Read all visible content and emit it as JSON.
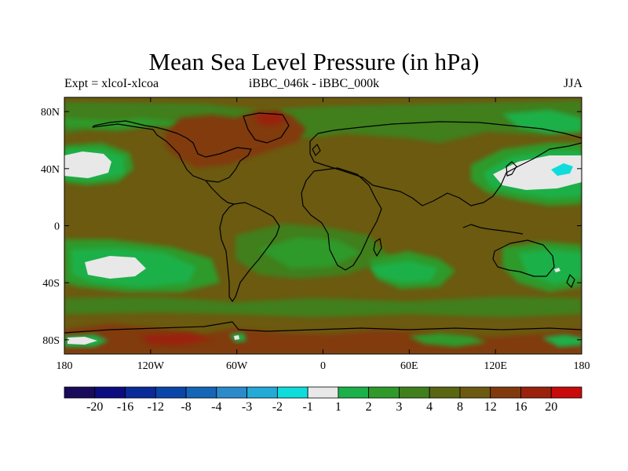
{
  "title": "Mean Sea Level Pressure (in hPa)",
  "subtitle_left": "Expt = xlcoI-xlcoa",
  "subtitle_center": "iBBC_046k - iBBC_000k",
  "subtitle_right": "JJA",
  "colors": {
    "background_field": "#6b5a10",
    "plain_border": "#000000"
  },
  "chart_data": {
    "type": "heatmap",
    "projection": "cylindrical-equidistant",
    "x_range": [
      -180,
      180
    ],
    "y_range": [
      -90,
      90
    ],
    "x_ticks": [
      {
        "value": -180,
        "label": "180"
      },
      {
        "value": -120,
        "label": "120W"
      },
      {
        "value": -60,
        "label": "60W"
      },
      {
        "value": 0,
        "label": "0"
      },
      {
        "value": 60,
        "label": "60E"
      },
      {
        "value": 120,
        "label": "120E"
      },
      {
        "value": 180,
        "label": "180"
      }
    ],
    "y_ticks": [
      {
        "value": 80,
        "label": "80N"
      },
      {
        "value": 40,
        "label": "40N"
      },
      {
        "value": 0,
        "label": "0"
      },
      {
        "value": -40,
        "label": "40S"
      },
      {
        "value": -80,
        "label": "80S"
      }
    ],
    "colorbar": {
      "labels": [
        "-20",
        "-16",
        "-12",
        "-8",
        "-4",
        "-3",
        "-2",
        "-1",
        "1",
        "2",
        "3",
        "4",
        "8",
        "12",
        "16",
        "20"
      ],
      "colors": [
        "#1a0a5c",
        "#0c0c80",
        "#0a2a9a",
        "#0a45aa",
        "#1566b6",
        "#2b8bca",
        "#23aad6",
        "#10dcdc",
        "#e8e8e8",
        "#1bb04a",
        "#2f9a2a",
        "#3f7f1c",
        "#5a6612",
        "#6b5a10",
        "#813a0e",
        "#9a220c",
        "#c80a0a"
      ]
    },
    "regions": [
      {
        "name": "north-pacific-high-east",
        "level": "-1 to 1",
        "lon": -170,
        "lat": 41
      },
      {
        "name": "north-pacific-high-west",
        "level": "-1 to 1",
        "lon": 160,
        "lat": 38
      },
      {
        "name": "south-pacific-high",
        "level": "-1 to 1",
        "lon": -140,
        "lat": -29
      },
      {
        "name": "kuroshio-minimum",
        "level": "-2 to -1",
        "lon": 165,
        "lat": 36
      },
      {
        "name": "greenland-high",
        "level": "8 to 12",
        "lon": -50,
        "lat": 65
      },
      {
        "name": "antarctic-coast-high",
        "level": "8 to 12",
        "lon": -140,
        "lat": -78
      }
    ]
  }
}
